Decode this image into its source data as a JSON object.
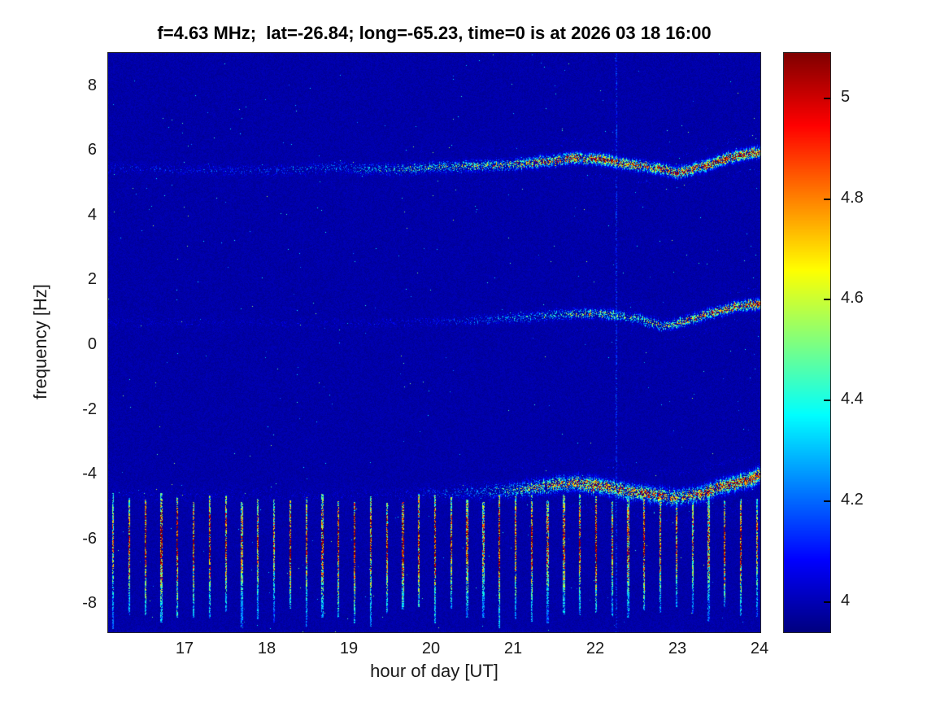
{
  "chart_data": {
    "type": "heatmap",
    "title": "f=4.63 MHz;  lat=-26.84; long=-65.23, time=0 is at 2026 03 18 16:00",
    "xlabel": "hour of day [UT]",
    "ylabel": "frequency [Hz]",
    "xlim": [
      16.06,
      24
    ],
    "ylim": [
      -8.85,
      9.05
    ],
    "x_ticks": [
      17,
      18,
      19,
      20,
      21,
      22,
      23,
      24
    ],
    "y_ticks": [
      8,
      6,
      4,
      2,
      0,
      -2,
      -4,
      -6,
      -8
    ],
    "colormap": "jet",
    "grid": false,
    "background_value": 3.96,
    "colorbar": {
      "range": [
        3.94,
        5.09
      ],
      "ticks": [
        5,
        4.8,
        4.6,
        4.4,
        4.2,
        4
      ],
      "position": "right"
    },
    "features": {
      "traces": [
        {
          "name": "upper-doppler-trace",
          "width": 0.13,
          "jitter": 0.1,
          "path": [
            [
              16,
              5.5
            ],
            [
              17,
              5.45
            ],
            [
              18,
              5.4
            ],
            [
              18.8,
              5.5
            ],
            [
              19.5,
              5.45
            ],
            [
              20,
              5.5
            ],
            [
              20.5,
              5.55
            ],
            [
              21,
              5.6
            ],
            [
              21.4,
              5.7
            ],
            [
              21.8,
              5.8
            ],
            [
              22.1,
              5.75
            ],
            [
              22.4,
              5.6
            ],
            [
              22.7,
              5.5
            ],
            [
              23,
              5.35
            ],
            [
              23.3,
              5.55
            ],
            [
              23.6,
              5.8
            ],
            [
              23.8,
              5.9
            ],
            [
              24,
              6.0
            ]
          ],
          "intensity": [
            [
              16,
              0.14
            ],
            [
              17,
              0.17
            ],
            [
              18,
              0.2
            ],
            [
              19,
              0.32
            ],
            [
              19.5,
              0.45
            ],
            [
              20,
              0.55
            ],
            [
              20.5,
              0.65
            ],
            [
              21,
              0.75
            ],
            [
              21.5,
              1.0
            ],
            [
              22,
              1.15
            ],
            [
              22.5,
              1.0
            ],
            [
              23,
              1.05
            ],
            [
              23.5,
              1.15
            ],
            [
              24,
              1.25
            ]
          ]
        },
        {
          "name": "middle-doppler-trace",
          "width": 0.12,
          "jitter": 0.1,
          "path": [
            [
              19,
              0.7
            ],
            [
              20,
              0.75
            ],
            [
              20.5,
              0.8
            ],
            [
              21,
              0.85
            ],
            [
              21.5,
              0.95
            ],
            [
              21.9,
              1.0
            ],
            [
              22.2,
              0.95
            ],
            [
              22.5,
              0.85
            ],
            [
              22.8,
              0.6
            ],
            [
              23.1,
              0.75
            ],
            [
              23.4,
              1.0
            ],
            [
              23.7,
              1.2
            ],
            [
              24,
              1.3
            ]
          ],
          "intensity": [
            [
              19,
              0.08
            ],
            [
              20,
              0.15
            ],
            [
              20.5,
              0.25
            ],
            [
              21,
              0.35
            ],
            [
              21.5,
              0.5
            ],
            [
              22,
              0.7
            ],
            [
              22.5,
              0.6
            ],
            [
              23,
              0.75
            ],
            [
              23.5,
              1.0
            ],
            [
              24,
              1.15
            ]
          ]
        },
        {
          "name": "lower-doppler-trace",
          "width": 0.18,
          "jitter": 0.12,
          "path": [
            [
              19.5,
              -4.6
            ],
            [
              20.5,
              -4.5
            ],
            [
              21,
              -4.45
            ],
            [
              21.5,
              -4.3
            ],
            [
              21.8,
              -4.25
            ],
            [
              22.1,
              -4.35
            ],
            [
              22.4,
              -4.5
            ],
            [
              22.7,
              -4.6
            ],
            [
              23,
              -4.7
            ],
            [
              23.3,
              -4.55
            ],
            [
              23.6,
              -4.3
            ],
            [
              23.8,
              -4.15
            ],
            [
              24,
              -4.0
            ]
          ],
          "intensity": [
            [
              19.5,
              0.08
            ],
            [
              20.5,
              0.3
            ],
            [
              21,
              0.5
            ],
            [
              21.5,
              0.9
            ],
            [
              22,
              1.05
            ],
            [
              22.5,
              1.0
            ],
            [
              23,
              0.95
            ],
            [
              23.5,
              1.05
            ],
            [
              24,
              1.2
            ]
          ]
        }
      ],
      "pulse_train": {
        "name": "periodic-transmitter-pulses",
        "x_start": 16.12,
        "x_step": 0.196,
        "half_width": 0.011,
        "y_top": -4.55,
        "y_bottom": -8.75,
        "y_center": -6.05,
        "core_sigma": 1.3,
        "peak_value": 5.1
      },
      "vertical_line_x": 22.25
    }
  }
}
